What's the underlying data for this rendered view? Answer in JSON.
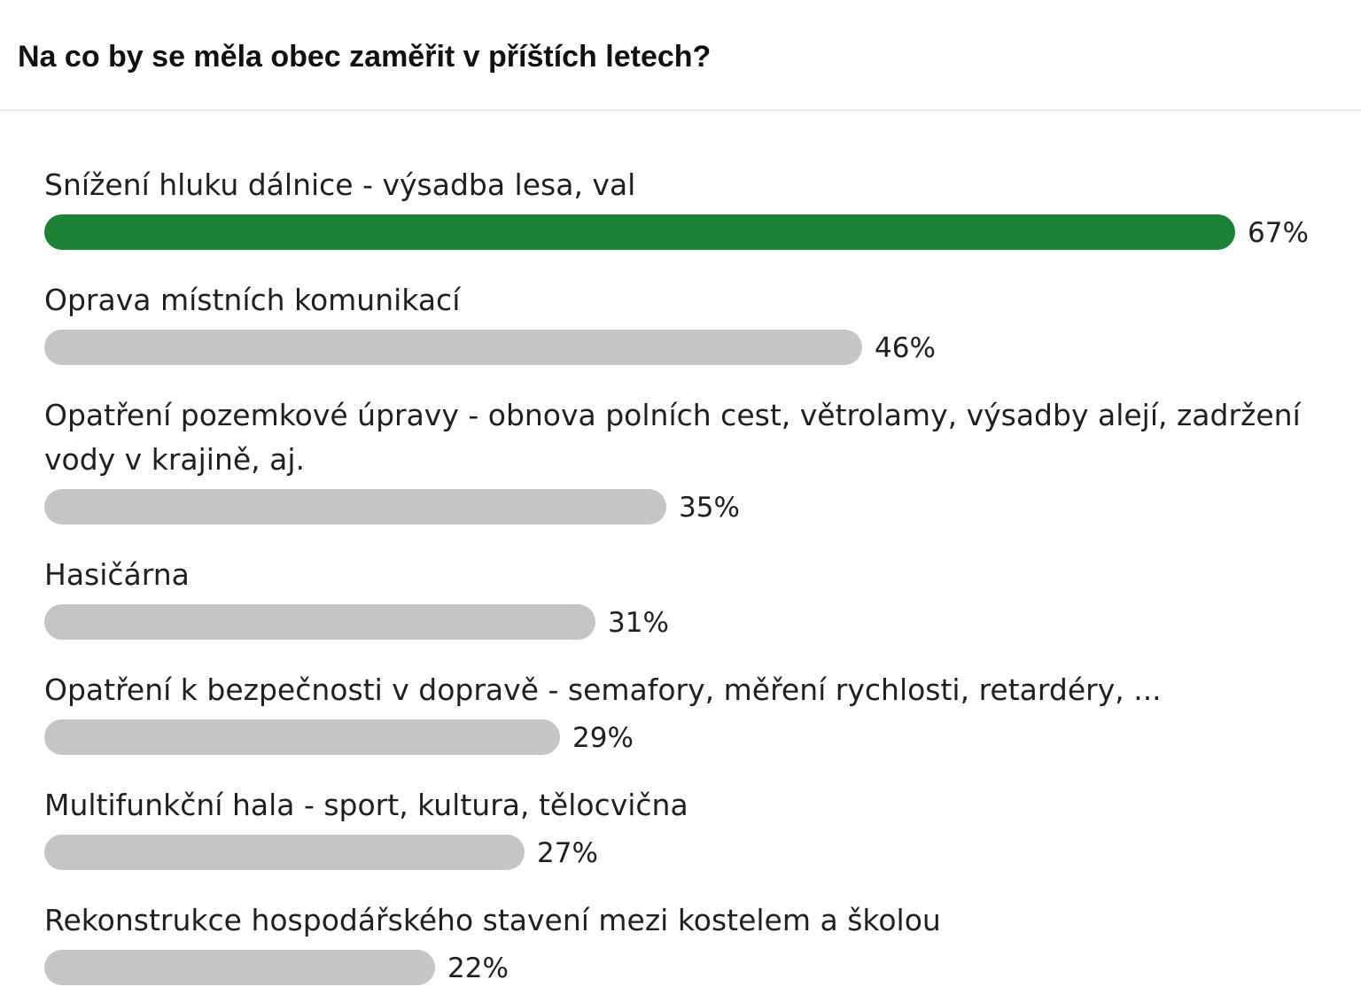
{
  "title": "Na co by se měla obec zaměřit v příštích letech?",
  "colors": {
    "leader": "#1d8136",
    "others": "#c4c4c4"
  },
  "chart_data": {
    "type": "bar",
    "orientation": "horizontal",
    "xlim": [
      0,
      67
    ],
    "categories": [
      "Snížení hluku dálnice - výsadba lesa, val",
      "Oprava místních komunikací",
      "Opatření pozemkové úpravy - obnova polních cest, větrolamy, výsadby alejí, zadržení vody v krajině, aj.",
      "Hasičárna",
      "Opatření k bezpečnosti v dopravě - semafory, měření rychlosti, retardéry, ...",
      "Multifunkční hala - sport, kultura, tělocvična",
      "Rekonstrukce hospodářského stavení mezi kostelem a školou"
    ],
    "values": [
      67,
      46,
      35,
      31,
      29,
      27,
      22
    ],
    "value_labels": [
      "67%",
      "46%",
      "35%",
      "31%",
      "29%",
      "27%",
      "22%"
    ]
  }
}
